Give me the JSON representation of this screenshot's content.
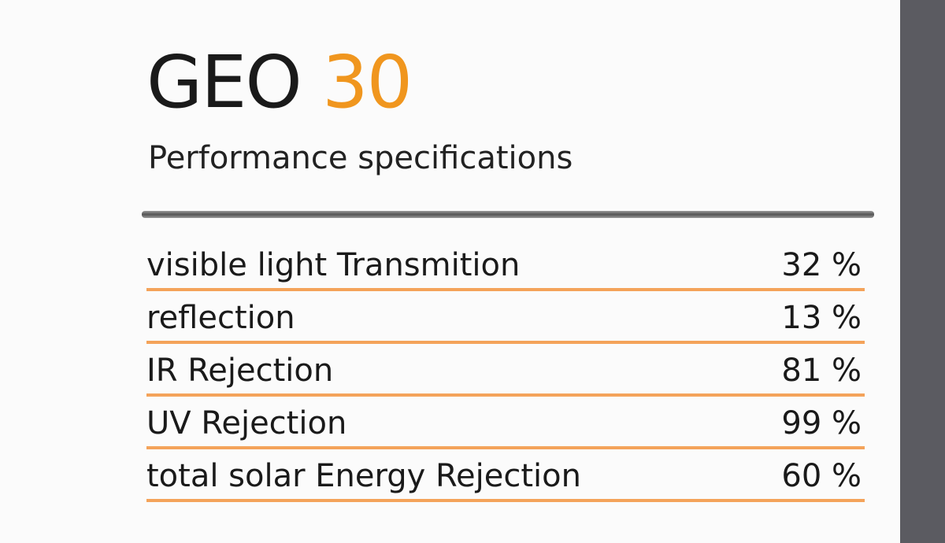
{
  "header": {
    "title": "GEO",
    "title_number": "30",
    "subtitle": "Performance specifications"
  },
  "table": {
    "rows": [
      [
        "visible light Transmition",
        "32 %"
      ],
      [
        "reflection",
        "13 %"
      ],
      [
        "IR Rejection",
        "81 %"
      ],
      [
        "UV Rejection",
        "99 %"
      ],
      [
        "total solar Energy Rejection",
        "60 %"
      ]
    ]
  }
}
